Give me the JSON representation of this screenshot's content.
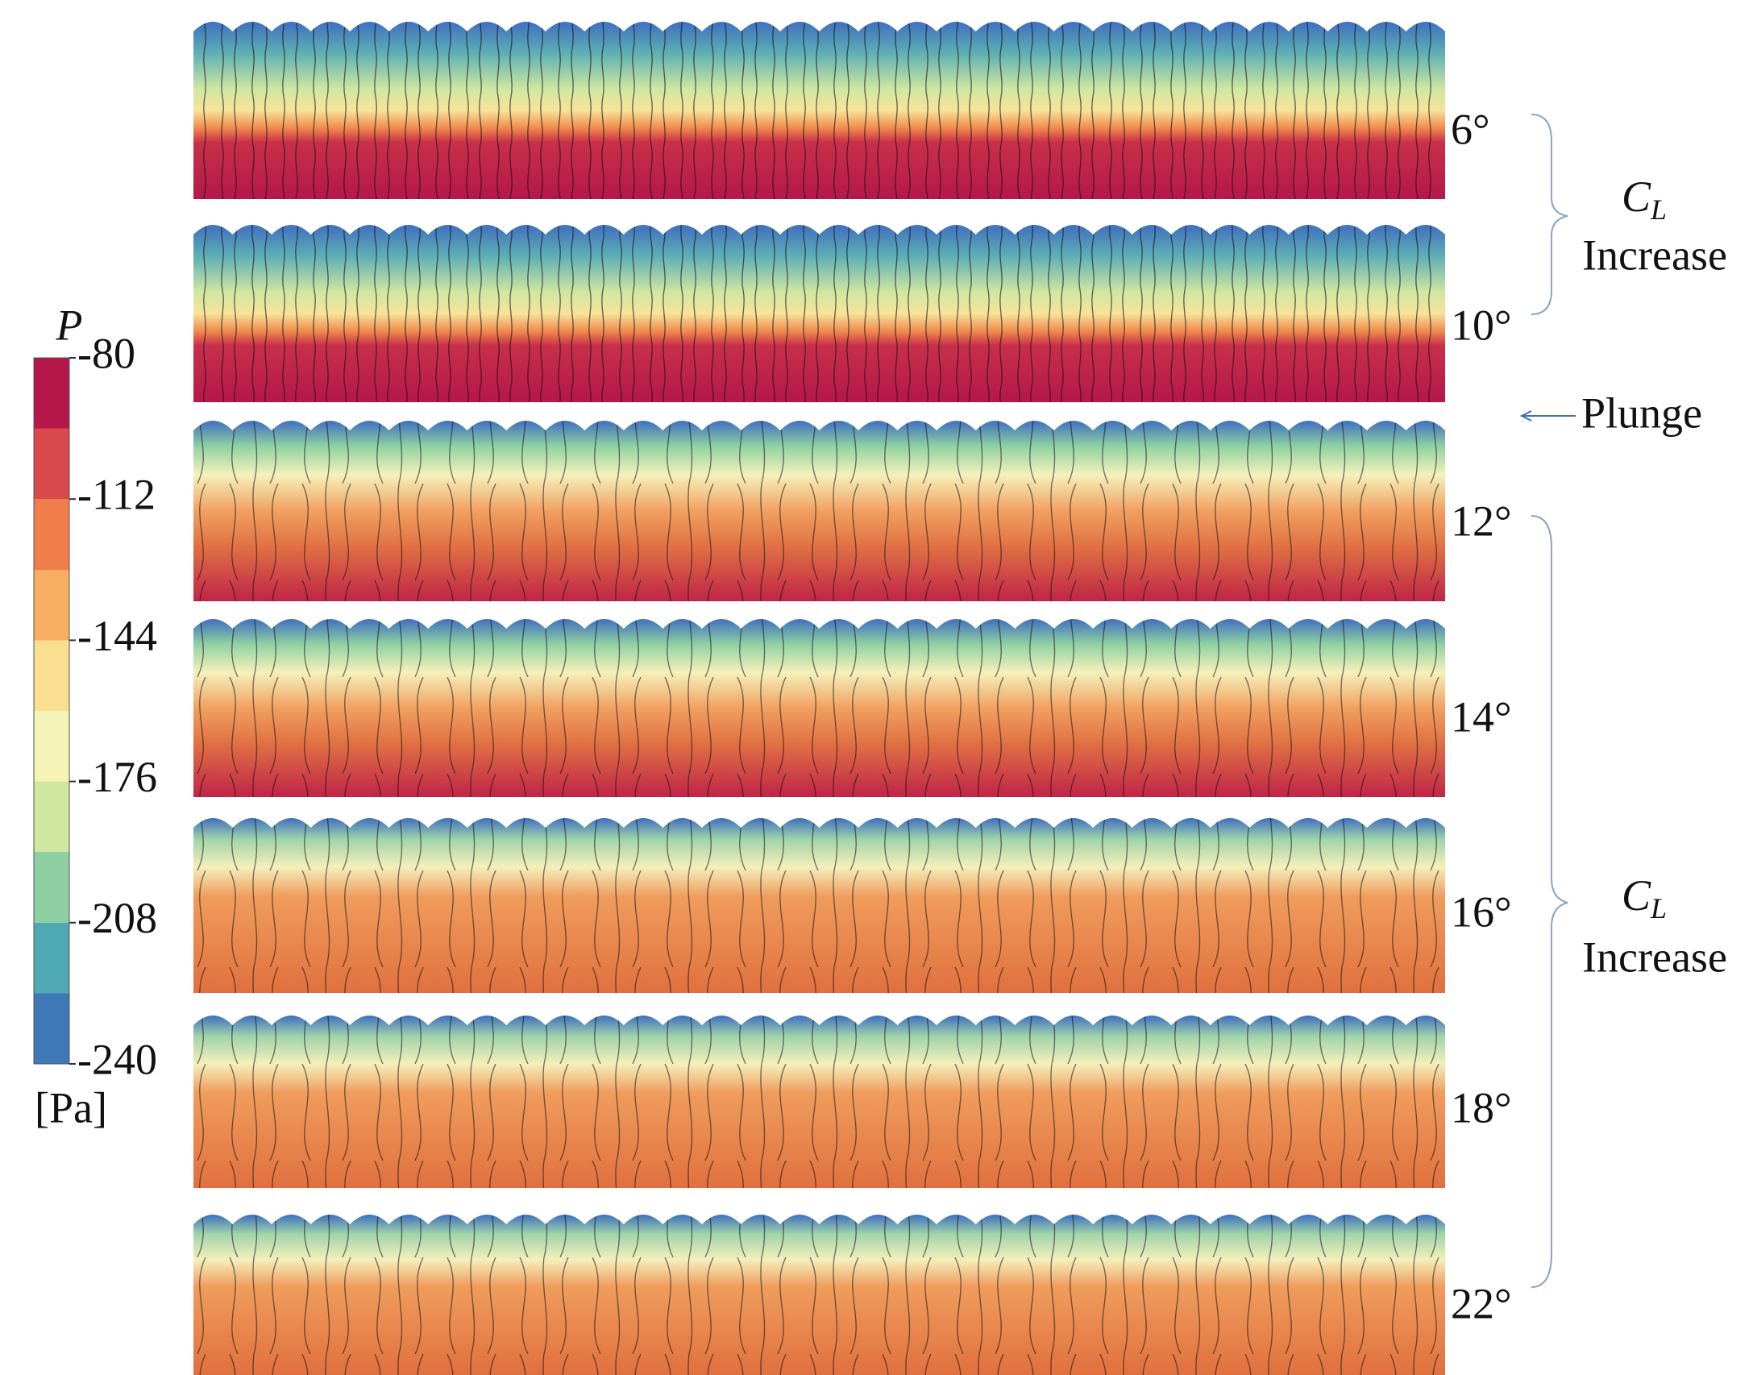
{
  "colorbar": {
    "symbol": "P",
    "ticks": [
      "-80",
      "-112",
      "-144",
      "-176",
      "-208",
      "-240"
    ],
    "unit": "[Pa]"
  },
  "panels": [
    {
      "angle": "6°"
    },
    {
      "angle": "10°"
    },
    {
      "angle": "12°"
    },
    {
      "angle": "14°"
    },
    {
      "angle": "16°"
    },
    {
      "angle": "18°"
    },
    {
      "angle": "22°"
    }
  ],
  "annotations": [
    {
      "symbol": "C",
      "subscript": "L",
      "label": "Increase"
    },
    {
      "text": "Plunge"
    },
    {
      "symbol": "C",
      "subscript": "L",
      "label": "Increase"
    }
  ]
}
